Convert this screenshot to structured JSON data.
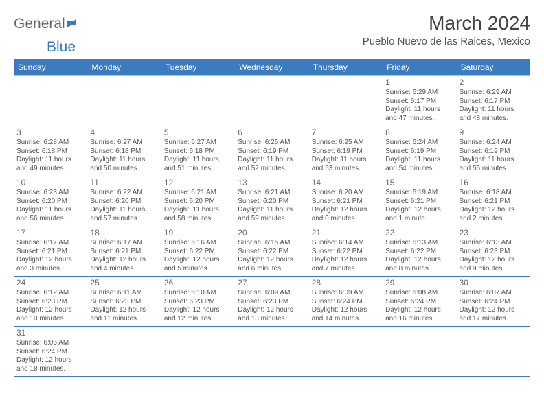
{
  "logo": {
    "general": "General",
    "blue": "Blue"
  },
  "title": "March 2024",
  "location": "Pueblo Nuevo de las Raices, Mexico",
  "colors": {
    "header_bg": "#3b7bbf",
    "header_text": "#ffffff",
    "cell_border_top": "#bfbfbf",
    "cell_border_bottom": "#3b7bbf",
    "text": "#555555",
    "background": "#ffffff"
  },
  "weekdays": [
    "Sunday",
    "Monday",
    "Tuesday",
    "Wednesday",
    "Thursday",
    "Friday",
    "Saturday"
  ],
  "first_weekday_index": 5,
  "days": [
    {
      "n": 1,
      "sunrise": "6:29 AM",
      "sunset": "6:17 PM",
      "daylight": "11 hours and 47 minutes."
    },
    {
      "n": 2,
      "sunrise": "6:29 AM",
      "sunset": "6:17 PM",
      "daylight": "11 hours and 48 minutes."
    },
    {
      "n": 3,
      "sunrise": "6:28 AM",
      "sunset": "6:18 PM",
      "daylight": "11 hours and 49 minutes."
    },
    {
      "n": 4,
      "sunrise": "6:27 AM",
      "sunset": "6:18 PM",
      "daylight": "11 hours and 50 minutes."
    },
    {
      "n": 5,
      "sunrise": "6:27 AM",
      "sunset": "6:18 PM",
      "daylight": "11 hours and 51 minutes."
    },
    {
      "n": 6,
      "sunrise": "6:26 AM",
      "sunset": "6:19 PM",
      "daylight": "11 hours and 52 minutes."
    },
    {
      "n": 7,
      "sunrise": "6:25 AM",
      "sunset": "6:19 PM",
      "daylight": "11 hours and 53 minutes."
    },
    {
      "n": 8,
      "sunrise": "6:24 AM",
      "sunset": "6:19 PM",
      "daylight": "11 hours and 54 minutes."
    },
    {
      "n": 9,
      "sunrise": "6:24 AM",
      "sunset": "6:19 PM",
      "daylight": "11 hours and 55 minutes."
    },
    {
      "n": 10,
      "sunrise": "6:23 AM",
      "sunset": "6:20 PM",
      "daylight": "11 hours and 56 minutes."
    },
    {
      "n": 11,
      "sunrise": "6:22 AM",
      "sunset": "6:20 PM",
      "daylight": "11 hours and 57 minutes."
    },
    {
      "n": 12,
      "sunrise": "6:21 AM",
      "sunset": "6:20 PM",
      "daylight": "11 hours and 58 minutes."
    },
    {
      "n": 13,
      "sunrise": "6:21 AM",
      "sunset": "6:20 PM",
      "daylight": "11 hours and 59 minutes."
    },
    {
      "n": 14,
      "sunrise": "6:20 AM",
      "sunset": "6:21 PM",
      "daylight": "12 hours and 0 minutes."
    },
    {
      "n": 15,
      "sunrise": "6:19 AM",
      "sunset": "6:21 PM",
      "daylight": "12 hours and 1 minute."
    },
    {
      "n": 16,
      "sunrise": "6:18 AM",
      "sunset": "6:21 PM",
      "daylight": "12 hours and 2 minutes."
    },
    {
      "n": 17,
      "sunrise": "6:17 AM",
      "sunset": "6:21 PM",
      "daylight": "12 hours and 3 minutes."
    },
    {
      "n": 18,
      "sunrise": "6:17 AM",
      "sunset": "6:21 PM",
      "daylight": "12 hours and 4 minutes."
    },
    {
      "n": 19,
      "sunrise": "6:16 AM",
      "sunset": "6:22 PM",
      "daylight": "12 hours and 5 minutes."
    },
    {
      "n": 20,
      "sunrise": "6:15 AM",
      "sunset": "6:22 PM",
      "daylight": "12 hours and 6 minutes."
    },
    {
      "n": 21,
      "sunrise": "6:14 AM",
      "sunset": "6:22 PM",
      "daylight": "12 hours and 7 minutes."
    },
    {
      "n": 22,
      "sunrise": "6:13 AM",
      "sunset": "6:22 PM",
      "daylight": "12 hours and 8 minutes."
    },
    {
      "n": 23,
      "sunrise": "6:13 AM",
      "sunset": "6:23 PM",
      "daylight": "12 hours and 9 minutes."
    },
    {
      "n": 24,
      "sunrise": "6:12 AM",
      "sunset": "6:23 PM",
      "daylight": "12 hours and 10 minutes."
    },
    {
      "n": 25,
      "sunrise": "6:11 AM",
      "sunset": "6:23 PM",
      "daylight": "12 hours and 11 minutes."
    },
    {
      "n": 26,
      "sunrise": "6:10 AM",
      "sunset": "6:23 PM",
      "daylight": "12 hours and 12 minutes."
    },
    {
      "n": 27,
      "sunrise": "6:09 AM",
      "sunset": "6:23 PM",
      "daylight": "12 hours and 13 minutes."
    },
    {
      "n": 28,
      "sunrise": "6:09 AM",
      "sunset": "6:24 PM",
      "daylight": "12 hours and 14 minutes."
    },
    {
      "n": 29,
      "sunrise": "6:08 AM",
      "sunset": "6:24 PM",
      "daylight": "12 hours and 16 minutes."
    },
    {
      "n": 30,
      "sunrise": "6:07 AM",
      "sunset": "6:24 PM",
      "daylight": "12 hours and 17 minutes."
    },
    {
      "n": 31,
      "sunrise": "6:06 AM",
      "sunset": "6:24 PM",
      "daylight": "12 hours and 18 minutes."
    }
  ]
}
